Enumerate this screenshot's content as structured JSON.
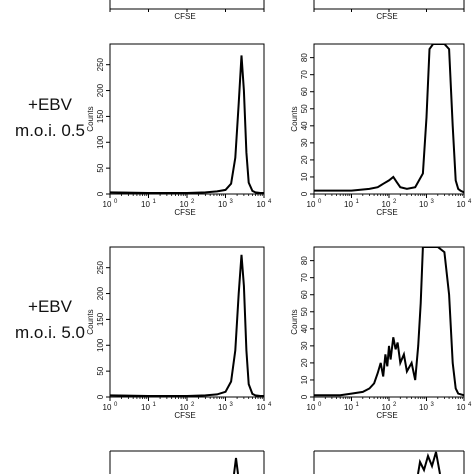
{
  "row_labels": [
    {
      "line1": "+EBV",
      "line2": "m.o.i. 0.5"
    },
    {
      "line1": "+EBV",
      "line2": "m.o.i. 5.0"
    }
  ],
  "x_tick_labels": {
    "base": "10",
    "exponents": [
      "0",
      "1",
      "2",
      "3",
      "4"
    ]
  },
  "chart_data": [
    {
      "type": "line",
      "title": "",
      "xlabel": "CFSE",
      "ylabel": "Counts",
      "xscale": "log",
      "xlim": [
        1,
        10000
      ],
      "ylim": [
        0,
        290
      ],
      "yticks": [
        0,
        50,
        100,
        150,
        200,
        250
      ],
      "grid": false,
      "series": [
        {
          "x": [
            1,
            10,
            100,
            300,
            600,
            1000,
            1400,
            1800,
            2200,
            2600,
            3000,
            3500,
            4000,
            5000,
            6000,
            8000,
            10000
          ],
          "y": [
            3,
            2,
            2,
            3,
            5,
            8,
            20,
            70,
            175,
            268,
            200,
            80,
            22,
            6,
            3,
            2,
            2
          ]
        }
      ]
    },
    {
      "type": "line",
      "title": "",
      "xlabel": "CFSE",
      "ylabel": "Counts",
      "xscale": "log",
      "xlim": [
        1,
        10000
      ],
      "ylim": [
        0,
        88
      ],
      "yticks": [
        0,
        10,
        20,
        30,
        40,
        50,
        60,
        70,
        80
      ],
      "grid": false,
      "series": [
        {
          "x": [
            1,
            10,
            30,
            50,
            70,
            100,
            130,
            160,
            200,
            300,
            500,
            800,
            1000,
            1200,
            1500,
            2000,
            3000,
            4000,
            5000,
            6000,
            7000,
            8000,
            10000
          ],
          "y": [
            2,
            2,
            3,
            4,
            6,
            8,
            10,
            7,
            4,
            3,
            4,
            12,
            45,
            85,
            88,
            88,
            88,
            85,
            40,
            8,
            3,
            2,
            1
          ]
        }
      ]
    },
    {
      "type": "line",
      "title": "",
      "xlabel": "CFSE",
      "ylabel": "Counts",
      "xscale": "log",
      "xlim": [
        1,
        10000
      ],
      "ylim": [
        0,
        290
      ],
      "yticks": [
        0,
        50,
        100,
        150,
        200,
        250
      ],
      "grid": false,
      "series": [
        {
          "x": [
            1,
            10,
            100,
            300,
            600,
            1000,
            1400,
            1800,
            2200,
            2600,
            3000,
            3500,
            4000,
            5000,
            6000,
            8000,
            10000
          ],
          "y": [
            3,
            2,
            2,
            3,
            5,
            10,
            30,
            90,
            200,
            275,
            215,
            90,
            25,
            6,
            3,
            2,
            2
          ]
        }
      ]
    },
    {
      "type": "line",
      "title": "",
      "xlabel": "CFSE",
      "ylabel": "Counts",
      "xscale": "log",
      "xlim": [
        1,
        10000
      ],
      "ylim": [
        0,
        88
      ],
      "yticks": [
        0,
        10,
        20,
        30,
        40,
        50,
        60,
        70,
        80
      ],
      "grid": false,
      "series": [
        {
          "x": [
            1,
            5,
            10,
            20,
            30,
            40,
            50,
            60,
            70,
            80,
            90,
            100,
            110,
            130,
            150,
            170,
            200,
            250,
            300,
            400,
            500,
            600,
            700,
            800,
            900,
            1000,
            1200,
            1500,
            2000,
            3000,
            4000,
            5000,
            6000,
            7000,
            10000
          ],
          "y": [
            1,
            1,
            2,
            3,
            5,
            8,
            14,
            20,
            12,
            25,
            18,
            30,
            22,
            35,
            28,
            32,
            20,
            25,
            15,
            20,
            10,
            30,
            55,
            88,
            88,
            88,
            88,
            88,
            88,
            85,
            60,
            20,
            5,
            2,
            1
          ]
        }
      ]
    }
  ]
}
